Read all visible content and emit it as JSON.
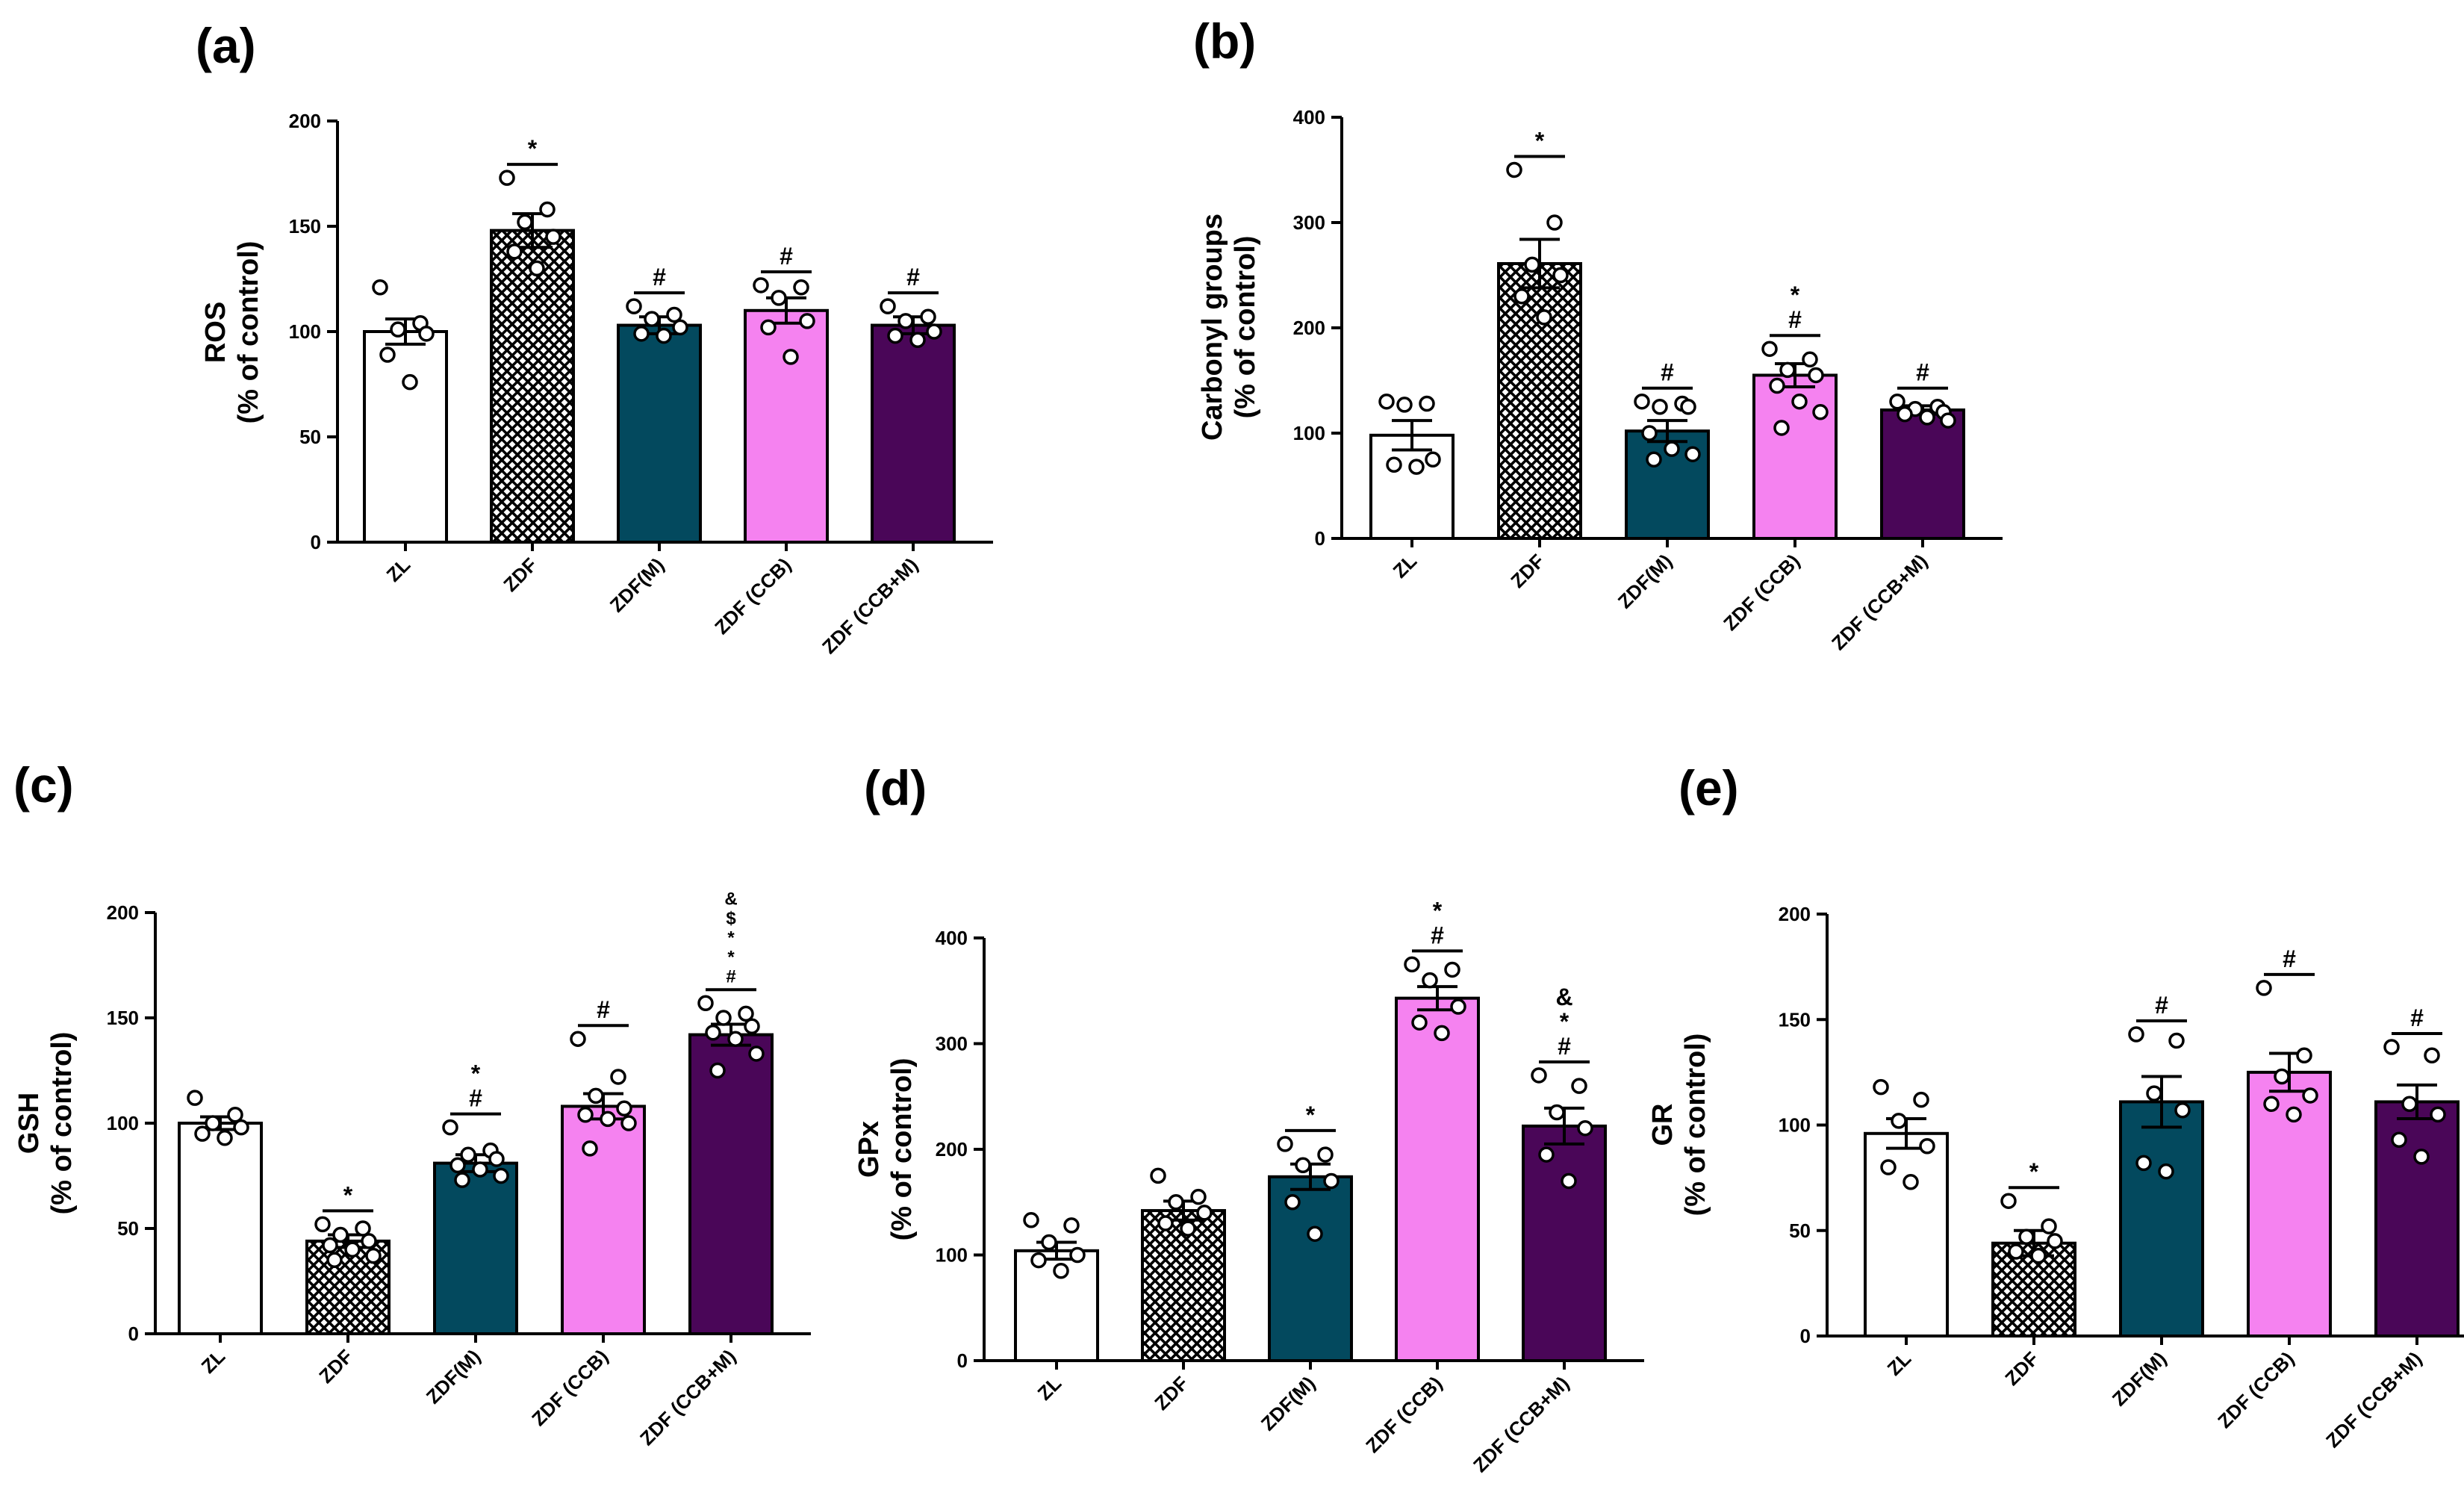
{
  "categories": [
    "ZL",
    "ZDF",
    "ZDF(M)",
    "ZDF (CCB)",
    "ZDF (CCB+M)"
  ],
  "colors": {
    "ZL": "#ffffff",
    "ZDF": "crosshatch",
    "ZDF(M)": "#03495e",
    "ZDF (CCB)": "#f582f0",
    "ZDF (CCB+M)": "#4a0658"
  },
  "chart_data": [
    {
      "type": "bar",
      "panel": "(a)",
      "ylabel": [
        "ROS",
        "(% of control)"
      ],
      "ylim": [
        0,
        200
      ],
      "yticks": [
        0,
        50,
        100,
        150,
        200
      ],
      "categories": [
        "ZL",
        "ZDF",
        "ZDF(M)",
        "ZDF (CCB)",
        "ZDF (CCB+M)"
      ],
      "values": [
        100,
        148,
        103,
        110,
        103
      ],
      "sem": [
        6,
        8,
        4,
        6,
        4
      ],
      "points": [
        [
          121,
          104,
          101,
          99,
          89,
          76
        ],
        [
          173,
          158,
          152,
          145,
          138,
          130
        ],
        [
          112,
          108,
          106,
          102,
          99,
          98
        ],
        [
          122,
          121,
          116,
          105,
          102,
          88
        ],
        [
          112,
          107,
          105,
          100,
          98,
          96
        ]
      ],
      "annotations": [
        [],
        [
          "*"
        ],
        [
          "#"
        ],
        [
          "#"
        ],
        [
          "#"
        ]
      ]
    },
    {
      "type": "bar",
      "panel": "(b)",
      "ylabel": [
        "Carbonyl groups",
        "(% of control)"
      ],
      "ylim": [
        0,
        400
      ],
      "yticks": [
        0,
        100,
        200,
        300,
        400
      ],
      "categories": [
        "ZL",
        "ZDF",
        "ZDF(M)",
        "ZDF (CCB)",
        "ZDF (CCB+M)"
      ],
      "values": [
        98,
        261,
        102,
        155,
        122
      ],
      "sem": [
        14,
        23,
        10,
        11,
        4
      ],
      "points": [
        [
          130,
          128,
          127,
          75,
          70,
          68
        ],
        [
          350,
          300,
          260,
          250,
          230,
          210
        ],
        [
          130,
          128,
          125,
          125,
          100,
          85,
          80,
          75
        ],
        [
          180,
          170,
          160,
          155,
          145,
          130,
          120,
          105
        ],
        [
          130,
          125,
          123,
          120,
          118,
          115,
          112
        ]
      ],
      "annotations": [
        [],
        [
          "*"
        ],
        [
          "#"
        ],
        [
          "#",
          "*"
        ],
        [
          "#"
        ]
      ]
    },
    {
      "type": "bar",
      "panel": "(c)",
      "ylabel": [
        "GSH",
        "(% of control)"
      ],
      "ylim": [
        0,
        200
      ],
      "yticks": [
        0,
        50,
        100,
        150,
        200
      ],
      "categories": [
        "ZL",
        "ZDF",
        "ZDF(M)",
        "ZDF (CCB)",
        "ZDF (CCB+M)"
      ],
      "values": [
        100,
        44,
        81,
        108,
        142
      ],
      "sem": [
        3,
        3,
        4,
        6,
        5
      ],
      "points": [
        [
          112,
          104,
          100,
          98,
          95,
          93
        ],
        [
          52,
          50,
          47,
          44,
          42,
          40,
          37,
          35
        ],
        [
          98,
          87,
          85,
          83,
          80,
          78,
          75,
          73
        ],
        [
          140,
          122,
          113,
          107,
          104,
          102,
          100,
          88
        ],
        [
          157,
          152,
          150,
          146,
          143,
          140,
          133,
          125
        ]
      ],
      "annotations": [
        [],
        [
          "*"
        ],
        [
          "#",
          "*"
        ],
        [
          "#"
        ],
        [
          "#",
          "*",
          "*",
          "$",
          "&"
        ]
      ]
    },
    {
      "type": "bar",
      "panel": "(d)",
      "ylabel": [
        "GPx",
        "(% of control)"
      ],
      "ylim": [
        0,
        400
      ],
      "yticks": [
        0,
        100,
        200,
        300,
        400
      ],
      "categories": [
        "ZL",
        "ZDF",
        "ZDF(M)",
        "ZDF (CCB)",
        "ZDF (CCB+M)"
      ],
      "values": [
        104,
        142,
        174,
        343,
        222
      ],
      "sem": [
        8,
        9,
        12,
        11,
        17
      ],
      "points": [
        [
          133,
          128,
          112,
          100,
          95,
          85
        ],
        [
          175,
          155,
          150,
          140,
          130,
          125
        ],
        [
          205,
          195,
          185,
          170,
          150,
          120
        ],
        [
          375,
          370,
          360,
          335,
          320,
          310
        ],
        [
          270,
          260,
          235,
          220,
          195,
          170
        ]
      ],
      "annotations": [
        [],
        [],
        [
          "*"
        ],
        [
          "#",
          "*"
        ],
        [
          "#",
          "*",
          "&"
        ]
      ]
    },
    {
      "type": "bar",
      "panel": "(e)",
      "ylabel": [
        "GR",
        "(% of control)"
      ],
      "ylim": [
        0,
        200
      ],
      "yticks": [
        0,
        50,
        100,
        150,
        200
      ],
      "categories": [
        "ZL",
        "ZDF",
        "ZDF(M)",
        "ZDF (CCB)",
        "ZDF (CCB+M)"
      ],
      "values": [
        96,
        44,
        111,
        125,
        111
      ],
      "sem": [
        7,
        6,
        12,
        9,
        8
      ],
      "points": [
        [
          118,
          112,
          102,
          90,
          80,
          73
        ],
        [
          64,
          52,
          47,
          45,
          40,
          38
        ],
        [
          143,
          140,
          115,
          107,
          82,
          78
        ],
        [
          165,
          133,
          123,
          114,
          110,
          105
        ],
        [
          137,
          133,
          110,
          105,
          93,
          85
        ]
      ],
      "annotations": [
        [],
        [
          "*"
        ],
        [
          "#"
        ],
        [
          "#"
        ],
        [
          "#"
        ]
      ]
    }
  ]
}
